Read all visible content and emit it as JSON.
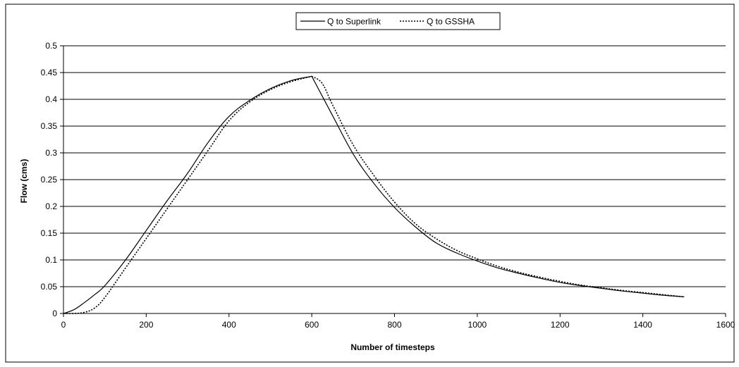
{
  "chart_data": {
    "type": "line",
    "title": "",
    "xlabel": "Number of timesteps",
    "ylabel": "Flow (cms)",
    "xlim": [
      0,
      1600
    ],
    "ylim": [
      0,
      0.5
    ],
    "x_ticks": [
      "0",
      "200",
      "400",
      "600",
      "800",
      "1000",
      "1200",
      "1400",
      "1600"
    ],
    "y_ticks": [
      "0",
      "0.05",
      "0.1",
      "0.15",
      "0.2",
      "0.25",
      "0.3",
      "0.35",
      "0.4",
      "0.45",
      "0.5"
    ],
    "grid": "horizontal",
    "legend_position": "top",
    "series": [
      {
        "name": "Q to Superlink",
        "style": "solid",
        "color": "#000000",
        "x": [
          0,
          25,
          50,
          75,
          100,
          150,
          200,
          250,
          300,
          350,
          400,
          450,
          500,
          550,
          600,
          650,
          700,
          750,
          800,
          850,
          900,
          950,
          1000,
          1050,
          1100,
          1150,
          1200,
          1250,
          1300,
          1350,
          1400,
          1450,
          1500
        ],
        "y": [
          0,
          0.007,
          0.02,
          0.035,
          0.052,
          0.1,
          0.155,
          0.21,
          0.262,
          0.32,
          0.368,
          0.398,
          0.42,
          0.435,
          0.443,
          0.37,
          0.298,
          0.243,
          0.198,
          0.162,
          0.132,
          0.113,
          0.098,
          0.085,
          0.075,
          0.066,
          0.058,
          0.052,
          0.047,
          0.042,
          0.038,
          0.034,
          0.031
        ]
      },
      {
        "name": "Q to GSSHA",
        "style": "dotted",
        "color": "#000000",
        "x": [
          0,
          25,
          50,
          75,
          100,
          150,
          200,
          250,
          300,
          350,
          400,
          450,
          500,
          550,
          600,
          625,
          650,
          700,
          750,
          800,
          850,
          900,
          950,
          1000,
          1050,
          1100,
          1150,
          1200,
          1250,
          1300,
          1350,
          1400,
          1450,
          1500
        ],
        "y": [
          0,
          0,
          0.002,
          0.01,
          0.03,
          0.085,
          0.14,
          0.195,
          0.25,
          0.305,
          0.36,
          0.395,
          0.418,
          0.433,
          0.443,
          0.43,
          0.39,
          0.315,
          0.258,
          0.208,
          0.168,
          0.14,
          0.118,
          0.102,
          0.088,
          0.077,
          0.068,
          0.06,
          0.053,
          0.048,
          0.043,
          0.039,
          0.035,
          0.031
        ]
      }
    ]
  }
}
